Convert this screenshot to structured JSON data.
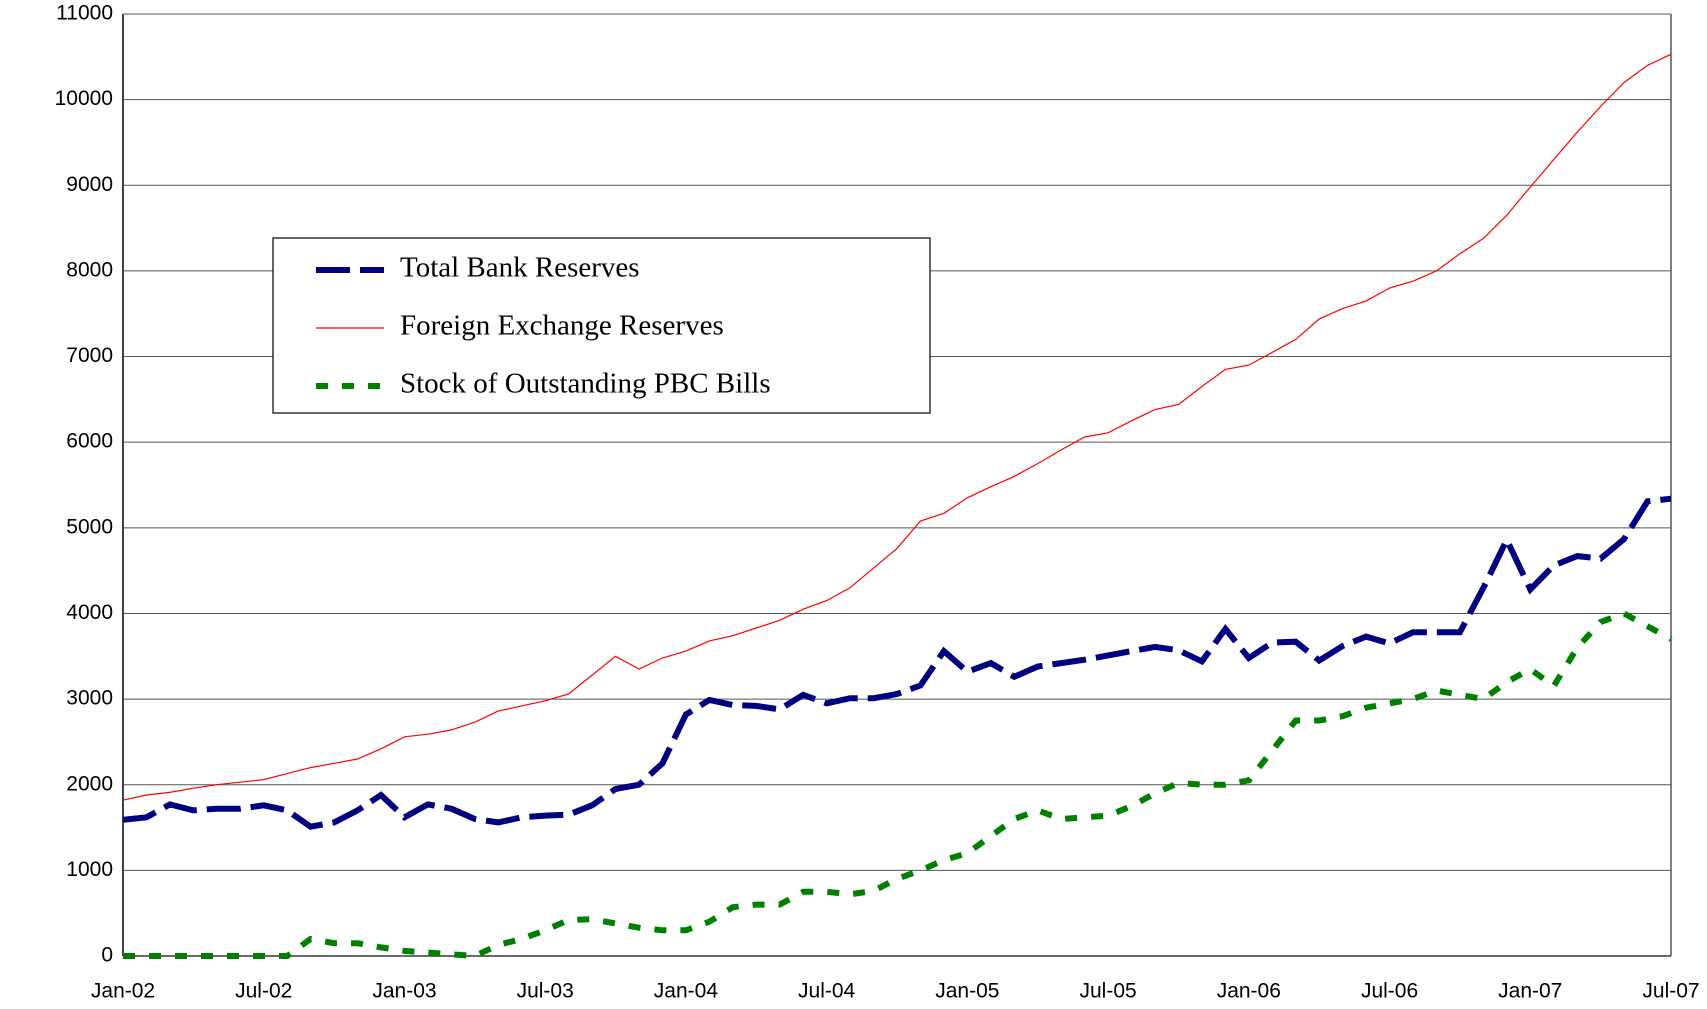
{
  "chart_data": {
    "type": "line",
    "categories": [
      "Jan-02",
      null,
      null,
      null,
      null,
      null,
      "Jul-02",
      null,
      null,
      null,
      null,
      null,
      "Jan-03",
      null,
      null,
      null,
      null,
      null,
      "Jul-03",
      null,
      null,
      null,
      null,
      null,
      "Jan-04",
      null,
      null,
      null,
      null,
      null,
      "Jul-04",
      null,
      null,
      null,
      null,
      null,
      "Jan-05",
      null,
      null,
      null,
      null,
      null,
      "Jul-05",
      null,
      null,
      null,
      null,
      null,
      "Jan-06",
      null,
      null,
      null,
      null,
      null,
      "Jul-06",
      null,
      null,
      null,
      null,
      null,
      "Jan-07",
      null,
      null,
      null,
      null,
      null,
      "Jul-07"
    ],
    "series": [
      {
        "name": "Total Bank Reserves",
        "color": "#000080",
        "style": "dashed",
        "values": [
          1590,
          1620,
          1770,
          1700,
          1720,
          1720,
          1760,
          1700,
          1510,
          1560,
          1700,
          1880,
          1620,
          1770,
          1720,
          1600,
          1560,
          1620,
          1640,
          1650,
          1760,
          1950,
          2000,
          2250,
          2820,
          2990,
          2930,
          2920,
          2880,
          3050,
          2950,
          3010,
          3010,
          3060,
          3160,
          3560,
          3320,
          3420,
          3260,
          3380,
          3420,
          3460,
          3510,
          3560,
          3610,
          3570,
          3440,
          3820,
          3480,
          3660,
          3670,
          3450,
          3620,
          3730,
          3650,
          3780,
          3780,
          3780,
          4300,
          4860,
          4280,
          4560,
          4670,
          4640,
          4870,
          5310,
          5340
        ]
      },
      {
        "name": "Foreign Exchange Reserves",
        "color": "#ff0000",
        "style": "solid",
        "values": [
          1820,
          1880,
          1910,
          1960,
          2000,
          2030,
          2060,
          2130,
          2200,
          2250,
          2300,
          2420,
          2560,
          2590,
          2640,
          2730,
          2860,
          2920,
          2980,
          3060,
          3280,
          3500,
          3350,
          3480,
          3560,
          3680,
          3740,
          3830,
          3920,
          4050,
          4150,
          4300,
          4530,
          4760,
          5080,
          5170,
          5350,
          5480,
          5600,
          5750,
          5910,
          6060,
          6110,
          6250,
          6380,
          6440,
          6650,
          6850,
          6900,
          7050,
          7200,
          7440,
          7560,
          7650,
          7800,
          7880,
          8000,
          8200,
          8380,
          8650,
          8980,
          9300,
          9620,
          9920,
          10200,
          10400,
          10530
        ]
      },
      {
        "name": "Stock of Outstanding PBC Bills",
        "color": "#008000",
        "style": "dotted",
        "values": [
          0,
          0,
          0,
          0,
          0,
          0,
          0,
          0,
          200,
          150,
          150,
          100,
          60,
          40,
          20,
          0,
          130,
          200,
          300,
          420,
          430,
          380,
          330,
          300,
          300,
          400,
          570,
          600,
          600,
          750,
          750,
          720,
          760,
          900,
          1000,
          1120,
          1200,
          1400,
          1600,
          1700,
          1600,
          1620,
          1640,
          1750,
          1900,
          2020,
          2000,
          2000,
          2050,
          2400,
          2750,
          2750,
          2800,
          2900,
          2950,
          3000,
          3100,
          3050,
          3000,
          3200,
          3350,
          3150,
          3600,
          3900,
          4000,
          3850,
          3700
        ]
      }
    ],
    "ylim": [
      0,
      11000
    ],
    "yticks": [
      0,
      1000,
      2000,
      3000,
      4000,
      5000,
      6000,
      7000,
      8000,
      9000,
      10000,
      11000
    ],
    "grid": true
  }
}
